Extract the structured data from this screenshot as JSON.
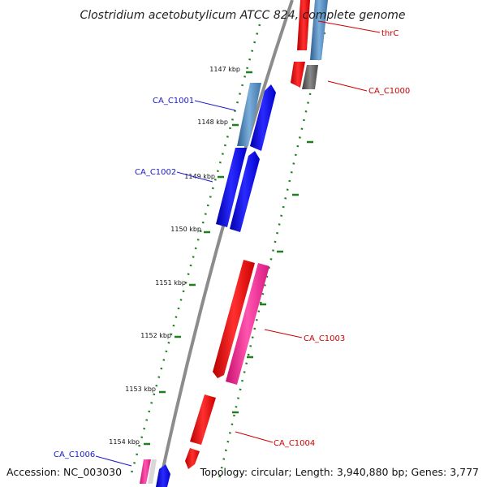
{
  "title": "Clostridium acetobutylicum ATCC 824, complete genome",
  "accession": "Accession: NC_003030",
  "topology": "Topology: circular; Length: 3,940,880 bp; Genes: 3,777",
  "colors": {
    "forward_label": "#1a1acc",
    "reverse_label": "#cc0000",
    "backbone": "#8c8c8c",
    "ticks": "#1f7f1f",
    "gene_blue": "#0000ee",
    "gene_steel": "#4f86b8",
    "gene_red": "#ee0000",
    "gene_pink": "#ee1e90",
    "gene_gray": "#5a5a5a"
  },
  "tick_labels": [
    "1147 kbp",
    "1148 kbp",
    "1149 kbp",
    "1150 kbp",
    "1151 kbp",
    "1152 kbp",
    "1153 kbp",
    "1154 kbp"
  ],
  "gene_labels": {
    "thrC": "thrC",
    "CA_C1000": "CA_C1000",
    "CA_C1001": "CA_C1001",
    "CA_C1002": "CA_C1002",
    "CA_C1003": "CA_C1003",
    "CA_C1004": "CA_C1004",
    "CA_C1006": "CA_C1006"
  }
}
